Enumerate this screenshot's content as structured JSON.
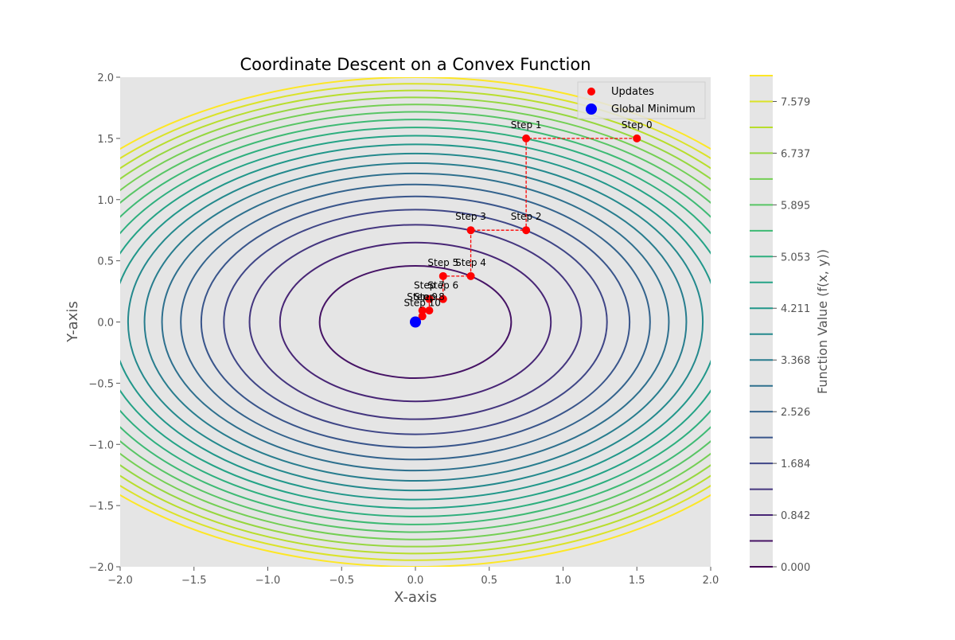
{
  "chart_data": {
    "type": "contour",
    "title": "Coordinate Descent on a Convex Function",
    "xlabel": "X-axis",
    "ylabel": "Y-axis",
    "xlim": [
      -2,
      2
    ],
    "ylim": [
      -2,
      2
    ],
    "xticks": [
      "−2.0",
      "−1.5",
      "−1.0",
      "−0.5",
      "0.0",
      "0.5",
      "1.0",
      "1.5",
      "2.0"
    ],
    "yticks": [
      "−2.0",
      "−1.5",
      "−1.0",
      "−0.5",
      "0.0",
      "0.5",
      "1.0",
      "1.5",
      "2.0"
    ],
    "function_ellipse_axes": {
      "x_coef": 1,
      "y_coef": 2
    },
    "contour_levels": [
      0.421,
      0.842,
      1.263,
      1.684,
      2.105,
      2.526,
      2.947,
      3.368,
      3.789,
      4.211,
      4.632,
      5.053,
      5.474,
      5.895,
      6.316,
      6.737,
      7.158,
      7.579,
      8.0
    ],
    "updates": {
      "name": "Updates",
      "color": "#ff0000",
      "points": [
        {
          "label": "Step 0",
          "x": 1.5,
          "y": 1.5
        },
        {
          "label": "Step 1",
          "x": 0.75,
          "y": 1.5
        },
        {
          "label": "Step 2",
          "x": 0.75,
          "y": 0.75
        },
        {
          "label": "Step 3",
          "x": 0.375,
          "y": 0.75
        },
        {
          "label": "Step 4",
          "x": 0.375,
          "y": 0.375
        },
        {
          "label": "Step 5",
          "x": 0.1875,
          "y": 0.375
        },
        {
          "label": "Step 6",
          "x": 0.1875,
          "y": 0.1875
        },
        {
          "label": "Step 7",
          "x": 0.09375,
          "y": 0.1875
        },
        {
          "label": "Step 8",
          "x": 0.09375,
          "y": 0.09375
        },
        {
          "label": "Step 9",
          "x": 0.046875,
          "y": 0.09375
        },
        {
          "label": "Step 10",
          "x": 0.046875,
          "y": 0.046875
        }
      ]
    },
    "global_minimum": {
      "name": "Global Minimum",
      "x": 0,
      "y": 0,
      "color": "#0000ff"
    },
    "legend_position": "top-right",
    "colorbar": {
      "label": "Function Value (f(x, y))",
      "range": [
        0,
        8
      ],
      "ticks": [
        "0.000",
        "0.842",
        "1.684",
        "2.526",
        "3.368",
        "4.211",
        "5.053",
        "5.895",
        "6.737",
        "7.579"
      ]
    },
    "colors": {
      "plot_background": "#e5e5e5",
      "path_color": "#ff0000",
      "minimum_color": "#0000ff"
    }
  }
}
